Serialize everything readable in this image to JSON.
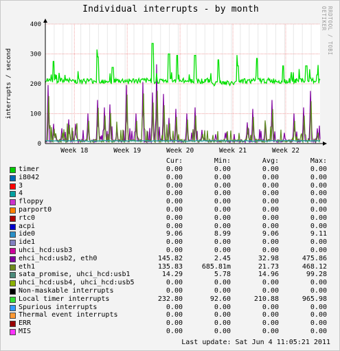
{
  "window": {
    "title": "Individual interrupts - by month",
    "watermark": "RRDTOOL / TOBI OETIKER",
    "last_update": "Last update:  Sat Jun  4 11:05:21 2011"
  },
  "chart_data": {
    "type": "line",
    "title": "Individual interrupts - by month",
    "ylabel": "interrupts / second",
    "xlabel": "",
    "ylim": [
      0,
      400
    ],
    "yticks": [
      0,
      100,
      200,
      300,
      400
    ],
    "x_tick_labels": [
      "Week 18",
      "Week 19",
      "Week 20",
      "Week 21",
      "Week 22"
    ],
    "grid": true,
    "background": "#ffffff",
    "series": [
      {
        "name": "ehci_hcd:usb2, eth0",
        "color": "#7f009f",
        "spikes": [
          {
            "x": 0.01,
            "y": 190
          },
          {
            "x": 0.03,
            "y": 60
          },
          {
            "x": 0.06,
            "y": 45
          },
          {
            "x": 0.085,
            "y": 75
          },
          {
            "x": 0.11,
            "y": 60
          },
          {
            "x": 0.155,
            "y": 95
          },
          {
            "x": 0.19,
            "y": 140
          },
          {
            "x": 0.215,
            "y": 115
          },
          {
            "x": 0.235,
            "y": 125
          },
          {
            "x": 0.26,
            "y": 45
          },
          {
            "x": 0.295,
            "y": 190
          },
          {
            "x": 0.33,
            "y": 95
          },
          {
            "x": 0.355,
            "y": 200
          },
          {
            "x": 0.39,
            "y": 165
          },
          {
            "x": 0.405,
            "y": 210
          },
          {
            "x": 0.43,
            "y": 160
          },
          {
            "x": 0.45,
            "y": 80
          },
          {
            "x": 0.475,
            "y": 110
          },
          {
            "x": 0.515,
            "y": 95
          },
          {
            "x": 0.545,
            "y": 115
          },
          {
            "x": 0.57,
            "y": 40
          },
          {
            "x": 0.62,
            "y": 25
          },
          {
            "x": 0.655,
            "y": 30
          },
          {
            "x": 0.735,
            "y": 65
          },
          {
            "x": 0.755,
            "y": 110
          },
          {
            "x": 0.8,
            "y": 65
          },
          {
            "x": 0.825,
            "y": 140
          },
          {
            "x": 0.87,
            "y": 30
          },
          {
            "x": 0.905,
            "y": 95
          },
          {
            "x": 0.94,
            "y": 115
          },
          {
            "x": 0.965,
            "y": 170
          },
          {
            "x": 0.99,
            "y": 45
          }
        ]
      },
      {
        "name": "eth1",
        "color": "#5c8a1c",
        "spikes": [
          {
            "x": 0.012,
            "y": 175
          },
          {
            "x": 0.032,
            "y": 50
          },
          {
            "x": 0.062,
            "y": 35
          },
          {
            "x": 0.087,
            "y": 65
          },
          {
            "x": 0.112,
            "y": 50
          },
          {
            "x": 0.157,
            "y": 80
          },
          {
            "x": 0.192,
            "y": 130
          },
          {
            "x": 0.217,
            "y": 100
          },
          {
            "x": 0.237,
            "y": 110
          },
          {
            "x": 0.262,
            "y": 35
          },
          {
            "x": 0.297,
            "y": 180
          },
          {
            "x": 0.332,
            "y": 80
          },
          {
            "x": 0.357,
            "y": 185
          },
          {
            "x": 0.392,
            "y": 150
          },
          {
            "x": 0.407,
            "y": 195
          },
          {
            "x": 0.432,
            "y": 140
          },
          {
            "x": 0.452,
            "y": 70
          },
          {
            "x": 0.477,
            "y": 95
          },
          {
            "x": 0.517,
            "y": 85
          },
          {
            "x": 0.547,
            "y": 100
          },
          {
            "x": 0.572,
            "y": 30
          },
          {
            "x": 0.737,
            "y": 55
          },
          {
            "x": 0.757,
            "y": 95
          },
          {
            "x": 0.802,
            "y": 55
          },
          {
            "x": 0.827,
            "y": 125
          },
          {
            "x": 0.907,
            "y": 80
          },
          {
            "x": 0.942,
            "y": 100
          },
          {
            "x": 0.967,
            "y": 155
          },
          {
            "x": 0.992,
            "y": 35
          }
        ]
      },
      {
        "name": "Local timer interrupts",
        "color": "#00e000",
        "baseline": 210,
        "peaks": [
          {
            "x": 0.03,
            "y": 275
          },
          {
            "x": 0.19,
            "y": 290
          },
          {
            "x": 0.245,
            "y": 255
          },
          {
            "x": 0.39,
            "y": 335
          },
          {
            "x": 0.45,
            "y": 300
          },
          {
            "x": 0.48,
            "y": 295
          },
          {
            "x": 0.545,
            "y": 295
          },
          {
            "x": 0.63,
            "y": 280
          },
          {
            "x": 0.7,
            "y": 260
          },
          {
            "x": 0.77,
            "y": 285
          },
          {
            "x": 0.865,
            "y": 260
          },
          {
            "x": 0.95,
            "y": 260
          },
          {
            "x": 0.99,
            "y": 230
          }
        ]
      },
      {
        "name": "ide0",
        "color": "#2aa0a0",
        "baseline": 9
      }
    ]
  },
  "legend": {
    "headers": {
      "cur": "Cur:",
      "min": "Min:",
      "avg": "Avg:",
      "max": "Max:"
    },
    "rows": [
      {
        "label": "timer",
        "color": "#00cc00",
        "cur": "0.00",
        "min": "0.00",
        "avg": "0.00",
        "max": "0.00"
      },
      {
        "label": "i8042",
        "color": "#0066b3",
        "cur": "0.00",
        "min": "0.00",
        "avg": "0.00",
        "max": "0.00"
      },
      {
        "label": "3",
        "color": "#ff0000",
        "cur": "0.00",
        "min": "0.00",
        "avg": "0.00",
        "max": "0.00"
      },
      {
        "label": "4",
        "color": "#00a0a0",
        "cur": "0.00",
        "min": "0.00",
        "avg": "0.00",
        "max": "0.00"
      },
      {
        "label": "floppy",
        "color": "#cc33cc",
        "cur": "0.00",
        "min": "0.00",
        "avg": "0.00",
        "max": "0.00"
      },
      {
        "label": "parport0",
        "color": "#ff8000",
        "cur": "0.00",
        "min": "0.00",
        "avg": "0.00",
        "max": "0.00"
      },
      {
        "label": "rtc0",
        "color": "#b00000",
        "cur": "0.00",
        "min": "0.00",
        "avg": "0.00",
        "max": "0.00"
      },
      {
        "label": "acpi",
        "color": "#0000cc",
        "cur": "0.00",
        "min": "0.00",
        "avg": "0.00",
        "max": "0.00"
      },
      {
        "label": "ide0",
        "color": "#2a8fc7",
        "cur": "9.06",
        "min": "8.99",
        "avg": "9.06",
        "max": "9.11"
      },
      {
        "label": "ide1",
        "color": "#8080c0",
        "cur": "0.00",
        "min": "0.00",
        "avg": "0.00",
        "max": "0.00"
      },
      {
        "label": "uhci_hcd:usb3",
        "color": "#cc0099",
        "cur": "0.00",
        "min": "0.00",
        "avg": "0.00",
        "max": "0.00"
      },
      {
        "label": "ehci_hcd:usb2, eth0",
        "color": "#7f009f",
        "cur": "145.82",
        "min": "2.45",
        "avg": "32.98",
        "max": "475.86"
      },
      {
        "label": "eth1",
        "color": "#6e8a1c",
        "cur": "135.83",
        "min": "685.81m",
        "avg": "21.73",
        "max": "468.12"
      },
      {
        "label": "sata_promise, uhci_hcd:usb1",
        "color": "#4a8a7a",
        "cur": "14.29",
        "min": "5.78",
        "avg": "14.96",
        "max": "99.28"
      },
      {
        "label": "uhci_hcd:usb4, uhci_hcd:usb5",
        "color": "#8ab000",
        "cur": "0.00",
        "min": "0.00",
        "avg": "0.00",
        "max": "0.00"
      },
      {
        "label": "Non-maskable interrupts",
        "color": "#000000",
        "cur": "0.00",
        "min": "0.00",
        "avg": "0.00",
        "max": "0.00"
      },
      {
        "label": "Local timer interrupts",
        "color": "#33dd33",
        "cur": "232.80",
        "min": "92.60",
        "avg": "210.88",
        "max": "965.98"
      },
      {
        "label": "Spurious interrupts",
        "color": "#3399ff",
        "cur": "0.00",
        "min": "0.00",
        "avg": "0.00",
        "max": "0.00"
      },
      {
        "label": "Thermal event interrupts",
        "color": "#ff9933",
        "cur": "0.00",
        "min": "0.00",
        "avg": "0.00",
        "max": "0.00"
      },
      {
        "label": "ERR",
        "color": "#990000",
        "cur": "0.00",
        "min": "0.00",
        "avg": "0.00",
        "max": "0.00"
      },
      {
        "label": "MIS",
        "color": "#ff33ff",
        "cur": "0.00",
        "min": "0.00",
        "avg": "0.00",
        "max": "0.00"
      }
    ]
  }
}
